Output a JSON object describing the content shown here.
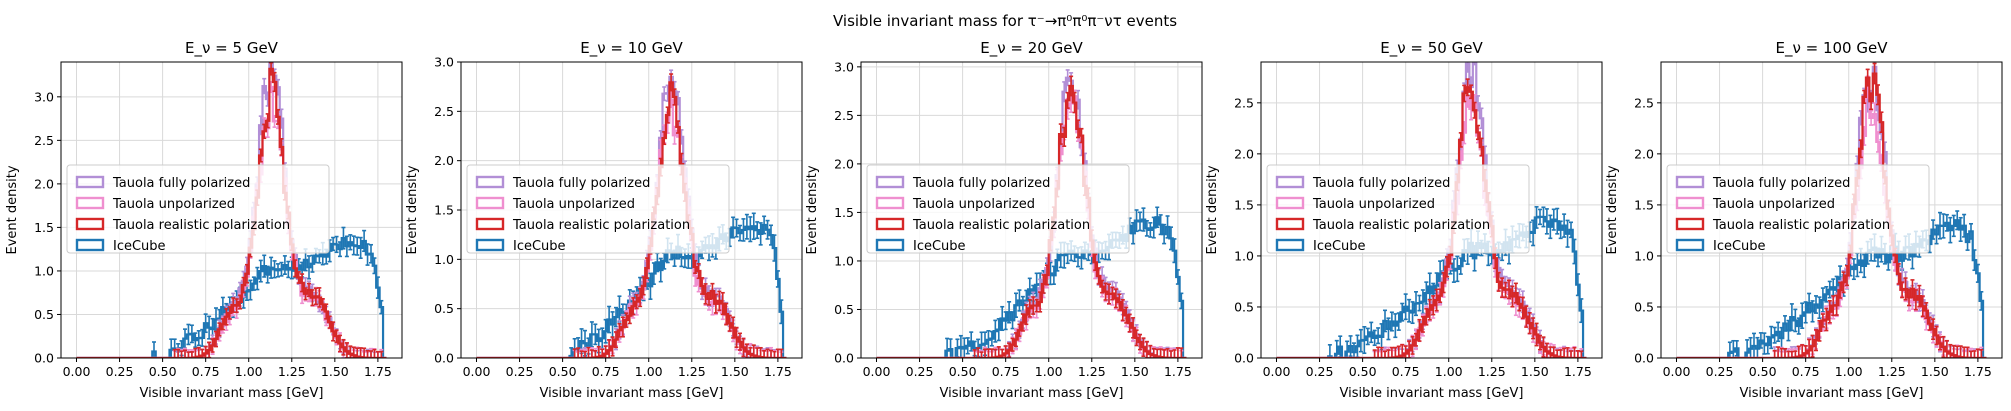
{
  "figure": {
    "suptitle": "Visible invariant mass for τ⁻→π⁰π⁰π⁻ντ events"
  },
  "legend": {
    "entries": [
      {
        "label": "Tauola fully polarized",
        "color": "#b28fd6"
      },
      {
        "label": "Tauola unpolarized",
        "color": "#ef8fcf"
      },
      {
        "label": "Tauola realistic polarization",
        "color": "#d62728"
      },
      {
        "label": "IceCube",
        "color": "#1f77b4"
      }
    ],
    "placement": "center-left"
  },
  "chart_data": [
    {
      "type": "histogram",
      "title": "E_ν = 5 GeV",
      "xlabel": "Visible invariant mass [GeV]",
      "ylabel": "Event density",
      "xlim": [
        -0.09,
        1.89
      ],
      "ylim": [
        0,
        3.4
      ],
      "xticks": [
        "0.00",
        "0.25",
        "0.50",
        "0.75",
        "1.00",
        "1.25",
        "1.50",
        "1.75"
      ],
      "yticks": [
        "0.0",
        "0.5",
        "1.0",
        "1.5",
        "2.0",
        "2.5",
        "3.0"
      ],
      "grid": true,
      "tauola_peak": 3.05,
      "icecube_plateau": 1.35,
      "icecube_onset": 0.45
    },
    {
      "type": "histogram",
      "title": "E_ν = 10 GeV",
      "xlabel": "Visible invariant mass [GeV]",
      "ylabel": "Event density",
      "xlim": [
        -0.09,
        1.89
      ],
      "ylim": [
        0,
        3.0
      ],
      "xticks": [
        "0.00",
        "0.25",
        "0.50",
        "0.75",
        "1.00",
        "1.25",
        "1.50",
        "1.75"
      ],
      "yticks": [
        "0.0",
        "0.5",
        "1.0",
        "1.5",
        "2.0",
        "2.5",
        "3.0"
      ],
      "grid": true,
      "tauola_peak": 2.65,
      "icecube_plateau": 1.35,
      "icecube_onset": 0.5
    },
    {
      "type": "histogram",
      "title": "E_ν = 20 GeV",
      "xlabel": "Visible invariant mass [GeV]",
      "ylabel": "Event density",
      "xlim": [
        -0.09,
        1.89
      ],
      "ylim": [
        0,
        3.05
      ],
      "xticks": [
        "0.00",
        "0.25",
        "0.50",
        "0.75",
        "1.00",
        "1.25",
        "1.50",
        "1.75"
      ],
      "yticks": [
        "0.0",
        "0.5",
        "1.0",
        "1.5",
        "2.0",
        "2.5",
        "3.0"
      ],
      "grid": true,
      "tauola_peak": 2.75,
      "icecube_plateau": 1.4,
      "icecube_onset": 0.4
    },
    {
      "type": "histogram",
      "title": "E_ν = 50 GeV",
      "xlabel": "Visible invariant mass [GeV]",
      "ylabel": "Event density",
      "xlim": [
        -0.09,
        1.89
      ],
      "ylim": [
        0,
        2.9
      ],
      "xticks": [
        "0.00",
        "0.25",
        "0.50",
        "0.75",
        "1.00",
        "1.25",
        "1.50",
        "1.75"
      ],
      "yticks": [
        "0.0",
        "0.5",
        "1.0",
        "1.5",
        "2.0",
        "2.5"
      ],
      "grid": true,
      "tauola_peak": 2.65,
      "icecube_plateau": 1.35,
      "icecube_onset": 0.3
    },
    {
      "type": "histogram",
      "title": "E_ν = 100 GeV",
      "xlabel": "Visible invariant mass [GeV]",
      "ylabel": "Event density",
      "xlim": [
        -0.09,
        1.89
      ],
      "ylim": [
        0,
        2.9
      ],
      "xticks": [
        "0.00",
        "0.25",
        "0.50",
        "0.75",
        "1.00",
        "1.25",
        "1.50",
        "1.75"
      ],
      "yticks": [
        "0.0",
        "0.5",
        "1.0",
        "1.5",
        "2.0",
        "2.5"
      ],
      "grid": true,
      "tauola_peak": 2.65,
      "icecube_plateau": 1.3,
      "icecube_onset": 0.3
    }
  ]
}
